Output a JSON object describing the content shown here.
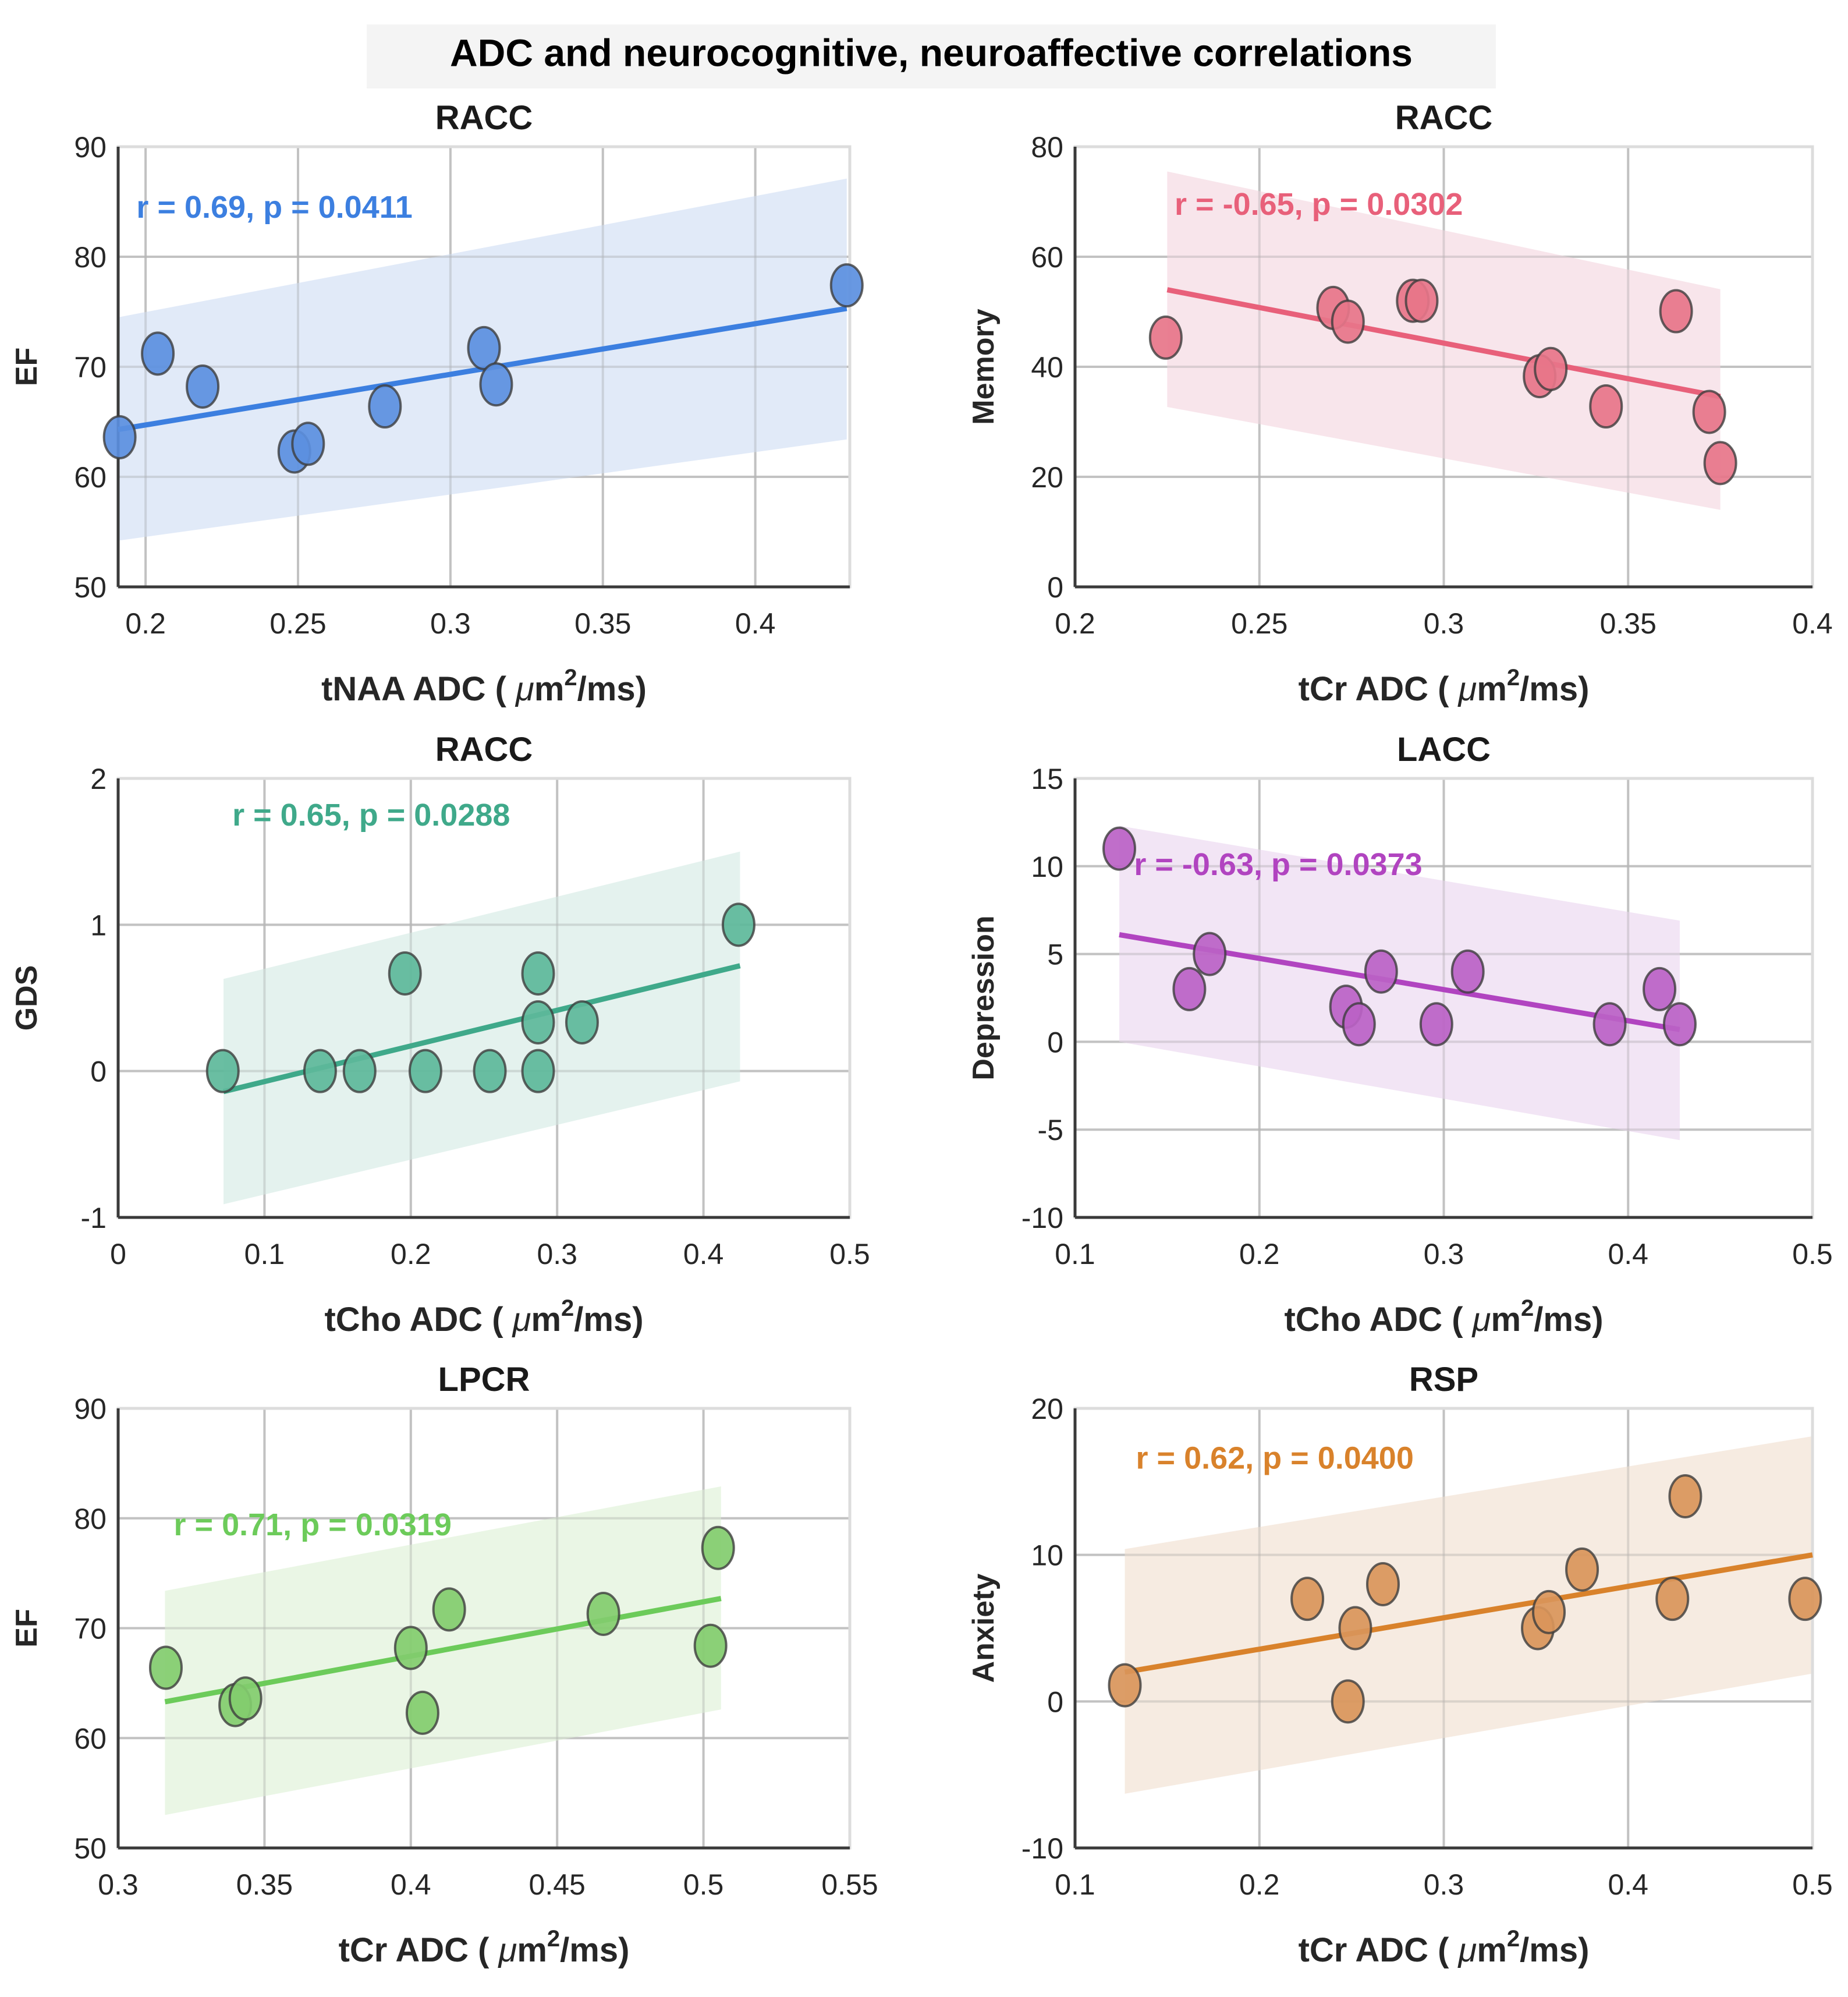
{
  "figure": {
    "title": "ADC and neurocognitive, neuroaffective correlations"
  },
  "chart_data": [
    {
      "type": "scatter",
      "title": "RACC",
      "xlabel": "tNAA ADC ( μm²/ms)",
      "xlabel_parts": {
        "pre": "tNAA ADC ( ",
        "mu": "μ",
        "m": "m",
        "sup": "2",
        "post": "/ms)"
      },
      "ylabel": "EF",
      "xlim": [
        0.191,
        0.431
      ],
      "ylim": [
        50,
        90
      ],
      "xticks": [
        0.2,
        0.25,
        0.3,
        0.35,
        0.4
      ],
      "xtick_labels": [
        "0.2",
        "0.25",
        "0.3",
        "0.35",
        "0.4"
      ],
      "yticks": [
        50,
        60,
        70,
        80,
        90
      ],
      "ytick_labels": [
        "50",
        "60",
        "70",
        "80",
        "90"
      ],
      "annotation": "r = 0.69, p = 0.0411",
      "annotation_pos": [
        0.197,
        84.5
      ],
      "color": "#3C7FE0",
      "marker_color": "#5B8FE0",
      "band_color": "#DCE6F7",
      "grid": true,
      "points": [
        [
          0.1915,
          63.6
        ],
        [
          0.204,
          71.2
        ],
        [
          0.2187,
          68.2
        ],
        [
          0.2488,
          62.3
        ],
        [
          0.2533,
          63.0
        ],
        [
          0.2785,
          66.4
        ],
        [
          0.311,
          71.7
        ],
        [
          0.315,
          68.4
        ],
        [
          0.43,
          77.4
        ]
      ],
      "fit": [
        [
          0.191,
          64.3
        ],
        [
          0.43,
          75.3
        ]
      ],
      "ci_lower": [
        [
          0.191,
          54.2
        ],
        [
          0.43,
          63.4
        ]
      ],
      "ci_upper": [
        [
          0.191,
          74.5
        ],
        [
          0.43,
          87.1
        ]
      ]
    },
    {
      "type": "scatter",
      "title": "RACC",
      "xlabel": "tCr ADC ( μm²/ms)",
      "xlabel_parts": {
        "pre": "tCr ADC ( ",
        "mu": "μ",
        "m": "m",
        "sup": "2",
        "post": "/ms)"
      },
      "ylabel": "Memory",
      "xlim": [
        0.2,
        0.4
      ],
      "ylim": [
        0,
        80
      ],
      "xticks": [
        0.2,
        0.25,
        0.3,
        0.35,
        0.4
      ],
      "xtick_labels": [
        "0.2",
        "0.25",
        "0.3",
        "0.35",
        "0.4"
      ],
      "yticks": [
        0,
        20,
        40,
        60,
        80
      ],
      "ytick_labels": [
        "0",
        "20",
        "40",
        "60",
        "80"
      ],
      "annotation": "r = -0.65, p = 0.0302",
      "annotation_pos": [
        0.227,
        69.5
      ],
      "color": "#E8607A",
      "marker_color": "#E77589",
      "band_color": "#F7E1E7",
      "grid": true,
      "points": [
        [
          0.2246,
          45.3
        ],
        [
          0.27,
          50.7
        ],
        [
          0.274,
          48.2
        ],
        [
          0.2916,
          52.0
        ],
        [
          0.294,
          52.0
        ],
        [
          0.326,
          38.3
        ],
        [
          0.329,
          39.6
        ],
        [
          0.344,
          32.8
        ],
        [
          0.363,
          50.1
        ],
        [
          0.372,
          31.8
        ],
        [
          0.375,
          22.5
        ]
      ],
      "fit": [
        [
          0.225,
          54.0
        ],
        [
          0.375,
          34.6
        ]
      ],
      "ci_lower": [
        [
          0.225,
          32.7
        ],
        [
          0.375,
          14.0
        ]
      ],
      "ci_upper": [
        [
          0.225,
          75.5
        ],
        [
          0.375,
          54.1
        ]
      ]
    },
    {
      "type": "scatter",
      "title": "RACC",
      "xlabel": "tCho ADC ( μm²/ms)",
      "xlabel_parts": {
        "pre": "tCho ADC ( ",
        "mu": "μ",
        "m": "m",
        "sup": "2",
        "post": "/ms)"
      },
      "ylabel": "GDS",
      "xlim": [
        0,
        0.5
      ],
      "ylim": [
        -1,
        2
      ],
      "xticks": [
        0,
        0.1,
        0.2,
        0.3,
        0.4,
        0.5
      ],
      "xtick_labels": [
        "0",
        "0.1",
        "0.2",
        "0.3",
        "0.4",
        "0.5"
      ],
      "yticks": [
        -1,
        0,
        1,
        2
      ],
      "ytick_labels": [
        "-1",
        "0",
        "1",
        "2"
      ],
      "annotation": "r = 0.65, p = 0.0288",
      "annotation_pos": [
        0.078,
        1.75
      ],
      "color": "#3FA98A",
      "marker_color": "#5DB89A",
      "band_color": "#DFF0EB",
      "grid": true,
      "points": [
        [
          0.0715,
          0.0
        ],
        [
          0.138,
          0.0
        ],
        [
          0.165,
          0.0
        ],
        [
          0.196,
          0.667
        ],
        [
          0.21,
          0.0
        ],
        [
          0.254,
          0.0
        ],
        [
          0.287,
          0.667
        ],
        [
          0.287,
          0.333
        ],
        [
          0.287,
          0.0
        ],
        [
          0.317,
          0.333
        ],
        [
          0.424,
          1.0
        ]
      ],
      "fit": [
        [
          0.072,
          -0.14
        ],
        [
          0.425,
          0.72
        ]
      ],
      "ci_lower": [
        [
          0.072,
          -0.91
        ],
        [
          0.425,
          -0.07
        ]
      ],
      "ci_upper": [
        [
          0.072,
          0.63
        ],
        [
          0.425,
          1.5
        ]
      ]
    },
    {
      "type": "scatter",
      "title": "LACC",
      "xlabel": "tCho ADC ( μm²/ms)",
      "xlabel_parts": {
        "pre": "tCho ADC ( ",
        "mu": "μ",
        "m": "m",
        "sup": "2",
        "post": "/ms)"
      },
      "ylabel": "Depression",
      "xlim": [
        0.1,
        0.5
      ],
      "ylim": [
        -10,
        15
      ],
      "xticks": [
        0.1,
        0.2,
        0.3,
        0.4,
        0.5
      ],
      "xtick_labels": [
        "0.1",
        "0.2",
        "0.3",
        "0.4",
        "0.5"
      ],
      "yticks": [
        -10,
        -5,
        0,
        5,
        10,
        15
      ],
      "ytick_labels": [
        "-10",
        "-5",
        "0",
        "5",
        "10",
        "15"
      ],
      "annotation": "r = -0.63, p = 0.0373",
      "annotation_pos": [
        0.132,
        10.1
      ],
      "color": "#B144C0",
      "marker_color": "#BB62C6",
      "band_color": "#F0E0F3",
      "grid": true,
      "points": [
        [
          0.124,
          11.0
        ],
        [
          0.162,
          3.0
        ],
        [
          0.173,
          5.0
        ],
        [
          0.247,
          2.0
        ],
        [
          0.254,
          1.0
        ],
        [
          0.266,
          4.0
        ],
        [
          0.296,
          1.0
        ],
        [
          0.313,
          4.0
        ],
        [
          0.39,
          1.0
        ],
        [
          0.417,
          3.0
        ],
        [
          0.428,
          1.0
        ]
      ],
      "fit": [
        [
          0.124,
          6.1
        ],
        [
          0.428,
          0.7
        ]
      ],
      "ci_lower": [
        [
          0.124,
          0.0
        ],
        [
          0.428,
          -5.6
        ]
      ],
      "ci_upper": [
        [
          0.124,
          12.3
        ],
        [
          0.428,
          6.9
        ]
      ]
    },
    {
      "type": "scatter",
      "title": "LPCR",
      "xlabel": "tCr ADC ( μm²/ms)",
      "xlabel_parts": {
        "pre": "tCr ADC ( ",
        "mu": "μ",
        "m": "m",
        "sup": "2",
        "post": "/ms)"
      },
      "ylabel": "EF",
      "xlim": [
        0.3,
        0.55
      ],
      "ylim": [
        50,
        90
      ],
      "xticks": [
        0.3,
        0.35,
        0.4,
        0.45,
        0.5,
        0.55
      ],
      "xtick_labels": [
        "0.3",
        "0.35",
        "0.4",
        "0.45",
        "0.5",
        "0.55"
      ],
      "yticks": [
        50,
        60,
        70,
        80,
        90
      ],
      "ytick_labels": [
        "50",
        "60",
        "70",
        "80",
        "90"
      ],
      "annotation": "r = 0.71, p = 0.0319",
      "annotation_pos": [
        0.319,
        79.4
      ],
      "color": "#6CCB5A",
      "marker_color": "#82CC6E",
      "band_color": "#E6F4E1",
      "grid": true,
      "points": [
        [
          0.3163,
          66.4
        ],
        [
          0.34,
          63.0
        ],
        [
          0.3435,
          63.6
        ],
        [
          0.4,
          68.2
        ],
        [
          0.404,
          62.3
        ],
        [
          0.4131,
          71.7
        ],
        [
          0.4658,
          71.3
        ],
        [
          0.5024,
          68.4
        ],
        [
          0.505,
          77.3
        ]
      ],
      "fit": [
        [
          0.316,
          63.3
        ],
        [
          0.506,
          72.7
        ]
      ],
      "ci_lower": [
        [
          0.316,
          53.0
        ],
        [
          0.506,
          62.6
        ]
      ],
      "ci_upper": [
        [
          0.316,
          73.4
        ],
        [
          0.506,
          82.9
        ]
      ]
    },
    {
      "type": "scatter",
      "title": "RSP",
      "xlabel": "tCr ADC ( μm²/ms)",
      "xlabel_parts": {
        "pre": "tCr ADC ( ",
        "mu": "μ",
        "m": "m",
        "sup": "2",
        "post": "/ms)"
      },
      "ylabel": "Anxiety",
      "xlim": [
        0.1,
        0.5
      ],
      "ylim": [
        -10,
        20
      ],
      "xticks": [
        0.1,
        0.2,
        0.3,
        0.4,
        0.5
      ],
      "xtick_labels": [
        "0.1",
        "0.2",
        "0.3",
        "0.4",
        "0.5"
      ],
      "yticks": [
        -10,
        0,
        10,
        20
      ],
      "ytick_labels": [
        "-10",
        "0",
        "10",
        "20"
      ],
      "annotation": "r = 0.62, p = 0.0400",
      "annotation_pos": [
        0.133,
        16.6
      ],
      "color": "#D9822B",
      "marker_color": "#D9955A",
      "band_color": "#F5E8DC",
      "grid": true,
      "points": [
        [
          0.127,
          1.1
        ],
        [
          0.226,
          7.0
        ],
        [
          0.248,
          0.0
        ],
        [
          0.252,
          5.0
        ],
        [
          0.267,
          8.0
        ],
        [
          0.351,
          5.0
        ],
        [
          0.357,
          6.1
        ],
        [
          0.375,
          9.0
        ],
        [
          0.424,
          7.0
        ],
        [
          0.431,
          14.0
        ],
        [
          0.496,
          7.0
        ]
      ],
      "fit": [
        [
          0.127,
          2.0
        ],
        [
          0.5,
          10.0
        ]
      ],
      "ci_lower": [
        [
          0.127,
          -6.3
        ],
        [
          0.5,
          1.9
        ]
      ],
      "ci_upper": [
        [
          0.127,
          10.4
        ],
        [
          0.5,
          18.1
        ]
      ]
    }
  ]
}
